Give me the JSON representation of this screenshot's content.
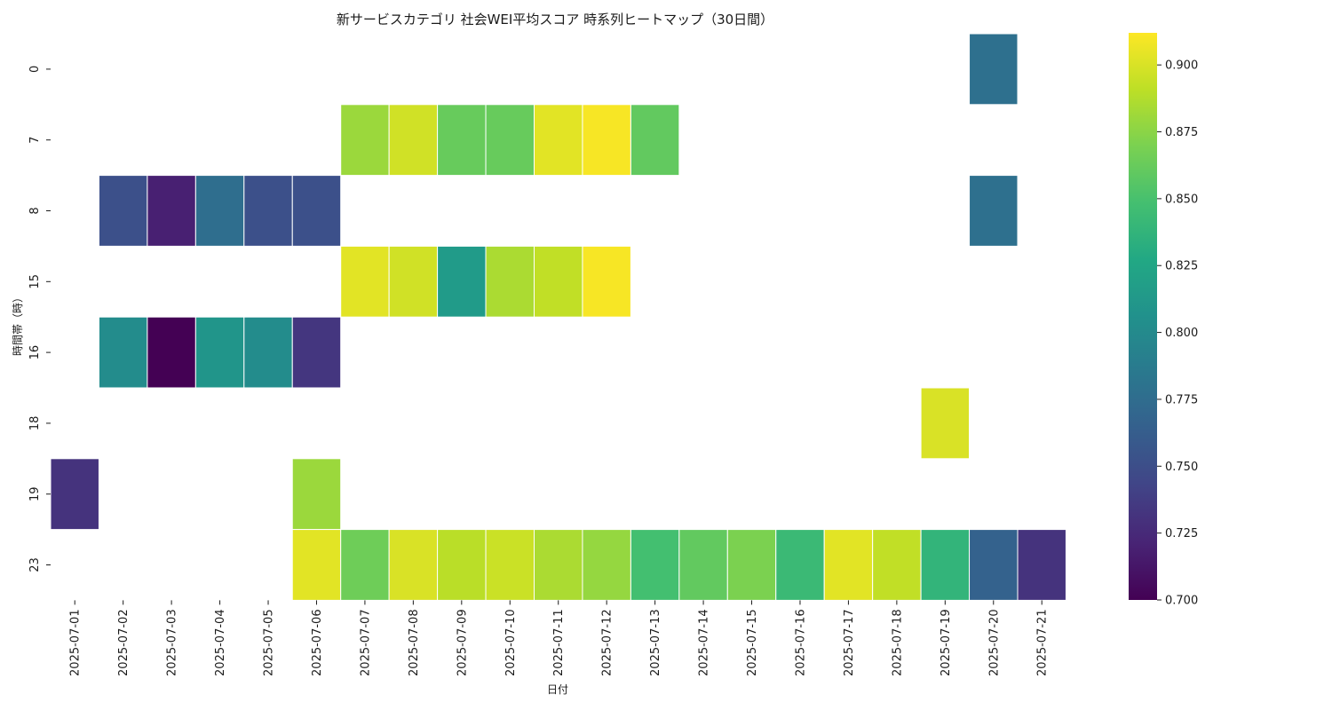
{
  "chart_data": {
    "type": "heatmap",
    "title": "新サービスカテゴリ 社会WEI平均スコア 時系列ヒートマップ（30日間）",
    "xlabel": "日付",
    "ylabel": "時間帯（時）",
    "x": [
      "2025-07-01",
      "2025-07-02",
      "2025-07-03",
      "2025-07-04",
      "2025-07-05",
      "2025-07-06",
      "2025-07-07",
      "2025-07-08",
      "2025-07-09",
      "2025-07-10",
      "2025-07-11",
      "2025-07-12",
      "2025-07-13",
      "2025-07-14",
      "2025-07-15",
      "2025-07-16",
      "2025-07-17",
      "2025-07-18",
      "2025-07-19",
      "2025-07-20",
      "2025-07-21"
    ],
    "y": [
      "0",
      "7",
      "8",
      "15",
      "16",
      "18",
      "19",
      "23"
    ],
    "values": [
      [
        null,
        null,
        null,
        null,
        null,
        null,
        null,
        null,
        null,
        null,
        null,
        null,
        null,
        null,
        null,
        null,
        null,
        null,
        null,
        0.778,
        null
      ],
      [
        null,
        null,
        null,
        null,
        null,
        null,
        0.88,
        0.897,
        0.862,
        0.862,
        0.903,
        0.91,
        0.86,
        null,
        null,
        null,
        null,
        null,
        null,
        null,
        null
      ],
      [
        null,
        0.752,
        0.719,
        0.776,
        0.752,
        0.752,
        null,
        null,
        null,
        null,
        null,
        null,
        null,
        null,
        null,
        null,
        null,
        null,
        null,
        0.778,
        null
      ],
      [
        null,
        null,
        null,
        null,
        null,
        null,
        0.903,
        0.897,
        0.815,
        0.885,
        0.892,
        0.91,
        null,
        null,
        null,
        null,
        null,
        null,
        null,
        null,
        null
      ],
      [
        null,
        0.802,
        0.7,
        0.81,
        0.802,
        0.733,
        null,
        null,
        null,
        null,
        null,
        null,
        null,
        null,
        null,
        null,
        null,
        null,
        null,
        null,
        null
      ],
      [
        null,
        null,
        null,
        null,
        null,
        null,
        null,
        null,
        null,
        null,
        null,
        null,
        null,
        null,
        null,
        null,
        null,
        null,
        0.9,
        null,
        null
      ],
      [
        0.731,
        null,
        null,
        null,
        null,
        0.88,
        null,
        null,
        null,
        null,
        null,
        null,
        null,
        null,
        null,
        null,
        null,
        null,
        null,
        null,
        null
      ],
      [
        null,
        null,
        null,
        null,
        null,
        0.903,
        0.865,
        0.9,
        0.89,
        0.895,
        0.885,
        0.878,
        0.848,
        0.86,
        0.87,
        0.843,
        0.903,
        0.892,
        0.838,
        0.766,
        0.731
      ]
    ],
    "colorbar": {
      "colormap": "viridis",
      "vmin": 0.7,
      "vmax": 0.912,
      "ticks": [
        "0.700",
        "0.725",
        "0.750",
        "0.775",
        "0.800",
        "0.825",
        "0.850",
        "0.875",
        "0.900"
      ]
    },
    "grid": false,
    "legend": "colorbar-right"
  }
}
